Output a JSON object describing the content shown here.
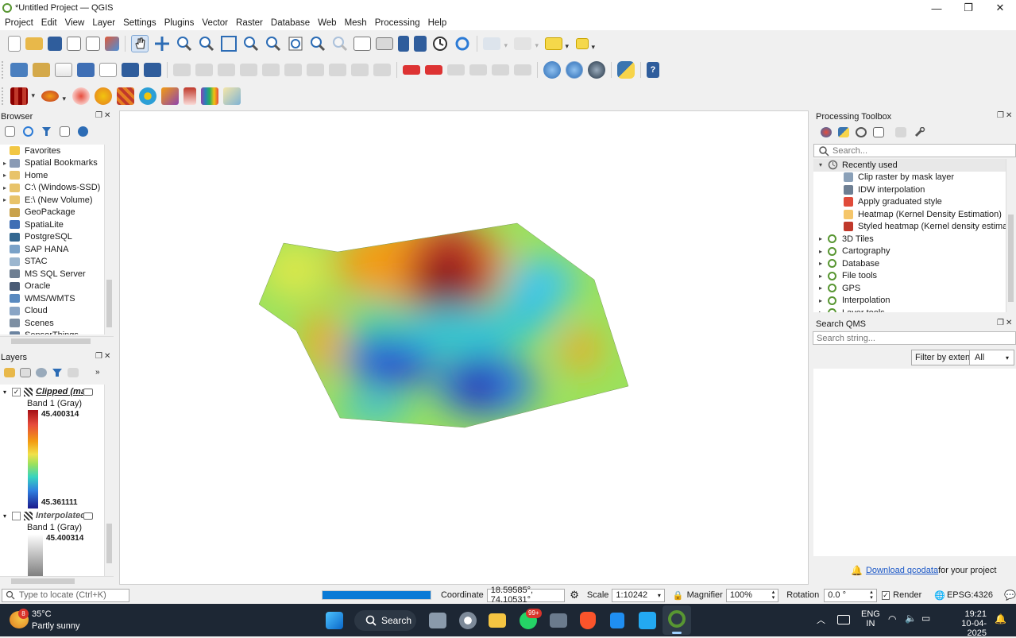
{
  "window": {
    "title": "*Untitled Project — QGIS",
    "controls": [
      "—",
      "❐",
      "✕"
    ]
  },
  "menu": [
    "Project",
    "Edit",
    "View",
    "Layer",
    "Settings",
    "Plugins",
    "Vector",
    "Raster",
    "Database",
    "Web",
    "Mesh",
    "Processing",
    "Help"
  ],
  "toolbar_icons": {
    "row1": [
      "new-project-icon",
      "open-project-icon",
      "save-project-icon",
      "new-print-layout-icon",
      "layout-manager-icon",
      "style-manager-icon",
      "pan-icon",
      "pan-to-selection-icon",
      "zoom-in-icon",
      "zoom-out-icon",
      "zoom-full-icon",
      "zoom-to-selection-icon",
      "zoom-to-layer-icon",
      "zoom-native-icon",
      "zoom-last-icon",
      "zoom-next-icon",
      "new-map-view-icon",
      "new-3d-view-icon",
      "new-bookmark-icon",
      "show-bookmarks-icon",
      "temporal-controller-icon",
      "refresh-icon",
      "identify-icon",
      "select-features-icon",
      "deselect-icon",
      "annotation-icon"
    ],
    "row2": [
      "data-source-manager-icon",
      "new-geopackage-icon",
      "new-shapefile-icon",
      "new-spatialite-icon",
      "new-memory-layer-icon",
      "add-raster-icon",
      "add-vector-icon",
      "toggle-editing-icon",
      "save-edits-icon",
      "digitize-icon",
      "vertex-tool-icon",
      "delete-selected-icon",
      "cut-icon",
      "copy-icon",
      "paste-icon",
      "undo-icon",
      "redo-icon",
      "label-icon",
      "pin-label-icon",
      "metasearch-icon",
      "qms-icon",
      "plugins-icon",
      "python-console-icon",
      "help-icon"
    ],
    "row3": [
      "raster-calc-icon",
      "heatmap-icon",
      "styled-heatmap-icon",
      "kernel-icon",
      "raster-style-icon",
      "settings-icon",
      "brush-icon",
      "gradient-icon",
      "spectrum-icon",
      "hillshade-icon"
    ]
  },
  "browser": {
    "title": "Browser",
    "items": [
      {
        "label": "Favorites",
        "icon": "star-icon",
        "color": "#f2c744",
        "arrow": ""
      },
      {
        "label": "Spatial Bookmarks",
        "icon": "bookmark-icon",
        "color": "#8a9bb5",
        "arrow": "▸"
      },
      {
        "label": "Home",
        "icon": "folder-icon",
        "color": "#e8c36a",
        "arrow": "▸"
      },
      {
        "label": "C:\\ (Windows-SSD)",
        "icon": "folder-icon",
        "color": "#e8c36a",
        "arrow": "▸"
      },
      {
        "label": "E:\\ (New Volume)",
        "icon": "folder-icon",
        "color": "#e8c36a",
        "arrow": "▸"
      },
      {
        "label": "GeoPackage",
        "icon": "geopackage-icon",
        "color": "#c9a24b",
        "arrow": ""
      },
      {
        "label": "SpatiaLite",
        "icon": "spatialite-icon",
        "color": "#3f6fb5",
        "arrow": ""
      },
      {
        "label": "PostgreSQL",
        "icon": "postgresql-icon",
        "color": "#336791",
        "arrow": ""
      },
      {
        "label": "SAP HANA",
        "icon": "saphana-icon",
        "color": "#7aa2c8",
        "arrow": ""
      },
      {
        "label": "STAC",
        "icon": "stac-icon",
        "color": "#9bb6cf",
        "arrow": ""
      },
      {
        "label": "MS SQL Server",
        "icon": "mssql-icon",
        "color": "#6e7f93",
        "arrow": ""
      },
      {
        "label": "Oracle",
        "icon": "oracle-icon",
        "color": "#4a5c76",
        "arrow": ""
      },
      {
        "label": "WMS/WMTS",
        "icon": "wms-icon",
        "color": "#5a8ac0",
        "arrow": ""
      },
      {
        "label": "Cloud",
        "icon": "cloud-icon",
        "color": "#8aa5c5",
        "arrow": ""
      },
      {
        "label": "Scenes",
        "icon": "scenes-icon",
        "color": "#7d8fa3",
        "arrow": ""
      },
      {
        "label": "SensorThings",
        "icon": "sensorthings-icon",
        "color": "#6b84a1",
        "arrow": ""
      }
    ]
  },
  "layers": {
    "title": "Layers",
    "items": [
      {
        "name": "Clipped (ma",
        "checked": true,
        "band": "Band 1 (Gray)",
        "max": "45.400314",
        "min": "45.361111"
      },
      {
        "name": "Interpolated",
        "checked": false,
        "band": "Band 1 (Gray)",
        "max": "45.400314"
      }
    ]
  },
  "processing": {
    "title": "Processing Toolbox",
    "search_placeholder": "Search...",
    "recent_label": "Recently used",
    "recent": [
      {
        "label": "Clip raster by mask layer",
        "color": "#8aa0b8"
      },
      {
        "label": "IDW interpolation",
        "color": "#6e7f93"
      },
      {
        "label": "Apply graduated style",
        "color": "#e04b3a"
      },
      {
        "label": "Heatmap (Kernel Density Estimation)",
        "color": "#f5c66a"
      },
      {
        "label": "Styled heatmap (Kernel density estima...",
        "color": "#c0392b"
      }
    ],
    "groups": [
      "3D Tiles",
      "Cartography",
      "Database",
      "File tools",
      "GPS",
      "Interpolation",
      "Layer tools"
    ]
  },
  "qms": {
    "title": "Search QMS",
    "search_placeholder": "Search string...",
    "filter_label": "Filter by extent",
    "filter_value": "All",
    "download_link": "Download qcodata",
    "download_suffix": " for your project"
  },
  "statusbar": {
    "locate_placeholder": "Type to locate (Ctrl+K)",
    "progress_fraction": 1.0,
    "coordinate_label": "Coordinate",
    "coordinate_value": "18.59585°, 74.10531°",
    "scale_label": "Scale",
    "scale_value": "1:10242",
    "magnifier_label": "Magnifier",
    "magnifier_value": "100%",
    "rotation_label": "Rotation",
    "rotation_value": "0.0 °",
    "render_label": "Render",
    "crs_label": "EPSG:4326"
  },
  "taskbar": {
    "weather_temp": "35°C",
    "weather_desc": "Partly sunny",
    "weather_badge": "8",
    "search_label": "Search",
    "whatsapp_badge": "99+",
    "lang_top": "ENG",
    "lang_bottom": "IN",
    "time": "19:21",
    "date": "10-04-2025"
  },
  "colors": {
    "accent": "#0a7ad6",
    "qgis_green": "#589632",
    "ramp_high": "#a50f15",
    "ramp_low": "#1a1a8c",
    "link": "#1a57c7"
  }
}
